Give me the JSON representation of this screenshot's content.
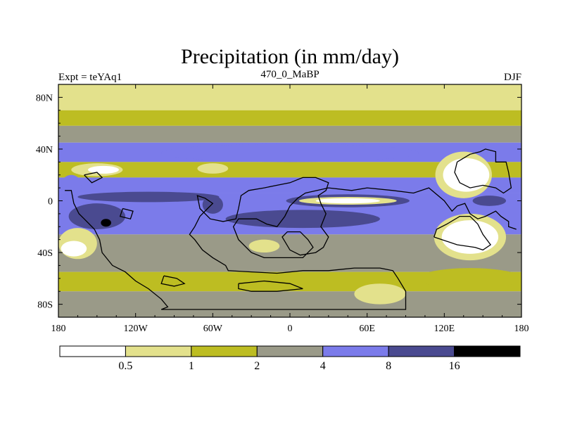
{
  "chart_data": {
    "type": "heatmap",
    "title": "Precipitation (in mm/day)",
    "subtitle_left": "Expt = teYAq1",
    "subtitle_center": "470_0_MaBP",
    "subtitle_right": "DJF",
    "x_tick_labels": [
      "180",
      "120W",
      "60W",
      "0",
      "60E",
      "120E",
      "180"
    ],
    "x_tick_values": [
      -180,
      -120,
      -60,
      0,
      60,
      120,
      180
    ],
    "y_tick_labels": [
      "80N",
      "40N",
      "0",
      "40S",
      "80S"
    ],
    "y_tick_values": [
      80,
      40,
      0,
      -40,
      -80
    ],
    "xlim": [
      -180,
      180
    ],
    "ylim": [
      -90,
      90
    ],
    "units": "mm/day",
    "levels": [
      0.5,
      1,
      2,
      4,
      8,
      16
    ],
    "level_labels": [
      "0.5",
      "1",
      "2",
      "4",
      "8",
      "16"
    ],
    "colors": [
      "#ffffff",
      "#e3e18c",
      "#bdbd22",
      "#9a9a88",
      "#7b7bea",
      "#4a4a90",
      "#000000"
    ],
    "bands": [
      {
        "lat_from": 90,
        "lat_to": 70,
        "class": 1
      },
      {
        "lat_from": 70,
        "lat_to": 58,
        "class": 2
      },
      {
        "lat_from": 58,
        "lat_to": 45,
        "class": 3
      },
      {
        "lat_from": 45,
        "lat_to": 30,
        "class": 4
      },
      {
        "lat_from": 30,
        "lat_to": 18,
        "class": 2
      },
      {
        "lat_from": 18,
        "lat_to": 6,
        "class": 4
      },
      {
        "lat_from": 6,
        "lat_to": -26,
        "class": 4
      },
      {
        "lat_from": -26,
        "lat_to": -55,
        "class": 3
      },
      {
        "lat_from": -55,
        "lat_to": -70,
        "class": 2
      },
      {
        "lat_from": -70,
        "lat_to": -90,
        "class": 3
      }
    ],
    "blobs": [
      {
        "lon": 45,
        "lat": 0,
        "rlon": 48,
        "rlat": 5,
        "class": 5
      },
      {
        "lon": 45,
        "lat": 0,
        "rlon": 38,
        "rlat": 3,
        "class": 1
      },
      {
        "lon": 45,
        "lat": 0,
        "rlon": 25,
        "rlat": 2,
        "class": 0
      },
      {
        "lon": -150,
        "lat": -12,
        "rlon": 22,
        "rlat": 10,
        "class": 5
      },
      {
        "lon": -143,
        "lat": -17,
        "rlon": 4,
        "rlat": 3,
        "class": 6
      },
      {
        "lon": 10,
        "lat": -14,
        "rlon": 60,
        "rlat": 7,
        "class": 5
      },
      {
        "lon": -110,
        "lat": 3,
        "rlon": 55,
        "rlat": 4,
        "class": 5
      },
      {
        "lon": -60,
        "lat": -3,
        "rlon": 8,
        "rlat": 7,
        "class": 5
      },
      {
        "lon": 155,
        "lat": 0,
        "rlon": 13,
        "rlat": 4,
        "class": 5
      },
      {
        "lon": 135,
        "lat": 20,
        "rlon": 22,
        "rlat": 18,
        "class": 1
      },
      {
        "lon": 137,
        "lat": 20,
        "rlon": 18,
        "rlat": 13,
        "class": 0
      },
      {
        "lon": 140,
        "lat": -28,
        "rlon": 28,
        "rlat": 18,
        "class": 1
      },
      {
        "lon": 140,
        "lat": -28,
        "rlon": 22,
        "rlat": 13,
        "class": 0
      },
      {
        "lon": -150,
        "lat": 24,
        "rlon": 20,
        "rlat": 5,
        "class": 1
      },
      {
        "lon": -145,
        "lat": 24,
        "rlon": 12,
        "rlat": 3,
        "class": 0
      },
      {
        "lon": -60,
        "lat": 25,
        "rlon": 12,
        "rlat": 4,
        "class": 1
      },
      {
        "lon": -20,
        "lat": -35,
        "rlon": 12,
        "rlat": 5,
        "class": 1
      },
      {
        "lon": -165,
        "lat": -33,
        "rlon": 15,
        "rlat": 12,
        "class": 1
      },
      {
        "lon": -168,
        "lat": -37,
        "rlon": 10,
        "rlat": 6,
        "class": 0
      },
      {
        "lon": 70,
        "lat": -72,
        "rlon": 20,
        "rlat": 8,
        "class": 1
      },
      {
        "lon": 140,
        "lat": -60,
        "rlon": 40,
        "rlat": 8,
        "class": 2
      },
      {
        "lon": 0,
        "lat": 37,
        "rlon": 100,
        "rlat": 7,
        "class": 4
      },
      {
        "lon": -170,
        "lat": 12,
        "rlon": 8,
        "rlat": 8,
        "class": 4
      }
    ],
    "land_outline": [
      [
        [
          -175,
          8
        ],
        [
          -170,
          8
        ],
        [
          -168,
          -2
        ],
        [
          -164,
          -10
        ],
        [
          -160,
          -14
        ],
        [
          -152,
          -22
        ],
        [
          -148,
          -30
        ],
        [
          -146,
          -40
        ],
        [
          -138,
          -50
        ],
        [
          -128,
          -55
        ],
        [
          -120,
          -62
        ],
        [
          -110,
          -68
        ],
        [
          -100,
          -76
        ],
        [
          -95,
          -82
        ],
        [
          -100,
          -84
        ],
        [
          -60,
          -84
        ],
        [
          0,
          -84
        ],
        [
          60,
          -84
        ],
        [
          90,
          -84
        ],
        [
          90,
          -70
        ],
        [
          84,
          -60
        ],
        [
          80,
          -54
        ],
        [
          70,
          -52
        ],
        [
          50,
          -52
        ],
        [
          30,
          -54
        ],
        [
          10,
          -54
        ],
        [
          -10,
          -56
        ],
        [
          -30,
          -55
        ],
        [
          -48,
          -54
        ],
        [
          -50,
          -50
        ],
        [
          -60,
          -44
        ],
        [
          -68,
          -38
        ],
        [
          -74,
          -30
        ],
        [
          -78,
          -26
        ],
        [
          -74,
          -20
        ],
        [
          -70,
          -12
        ],
        [
          -64,
          -6
        ],
        [
          -60,
          -2
        ],
        [
          -66,
          2
        ],
        [
          -72,
          4
        ],
        [
          -70,
          -6
        ],
        [
          -62,
          -14
        ],
        [
          -52,
          -16
        ],
        [
          -42,
          -14
        ],
        [
          -40,
          -6
        ],
        [
          -38,
          4
        ],
        [
          -32,
          8
        ],
        [
          -20,
          10
        ],
        [
          -10,
          12
        ],
        [
          0,
          14
        ],
        [
          10,
          18
        ],
        [
          20,
          18
        ],
        [
          30,
          14
        ],
        [
          28,
          8
        ],
        [
          22,
          4
        ],
        [
          24,
          -2
        ],
        [
          28,
          -10
        ],
        [
          24,
          -20
        ],
        [
          30,
          -28
        ],
        [
          26,
          -36
        ],
        [
          20,
          -40
        ],
        [
          8,
          -42
        ],
        [
          0,
          -38
        ],
        [
          -6,
          -28
        ],
        [
          -2,
          -24
        ],
        [
          8,
          -24
        ],
        [
          14,
          -30
        ],
        [
          18,
          -36
        ],
        [
          10,
          -44
        ],
        [
          -20,
          -44
        ],
        [
          -30,
          -40
        ],
        [
          -40,
          -30
        ],
        [
          -44,
          -20
        ],
        [
          -40,
          -14
        ],
        [
          -26,
          -14
        ],
        [
          -18,
          -18
        ],
        [
          -10,
          -20
        ],
        [
          -4,
          -12
        ],
        [
          0,
          -4
        ],
        [
          6,
          2
        ],
        [
          12,
          6
        ],
        [
          30,
          10
        ],
        [
          48,
          8
        ],
        [
          60,
          10
        ],
        [
          80,
          8
        ],
        [
          96,
          6
        ],
        [
          108,
          10
        ],
        [
          120,
          0
        ],
        [
          126,
          -8
        ],
        [
          130,
          -4
        ],
        [
          136,
          -2
        ],
        [
          140,
          -10
        ],
        [
          146,
          -14
        ],
        [
          152,
          -12
        ],
        [
          160,
          -8
        ],
        [
          164,
          -12
        ],
        [
          170,
          -16
        ],
        [
          170,
          -20
        ],
        [
          176,
          -22
        ]
      ],
      [
        [
          112,
          -28
        ],
        [
          130,
          -34
        ],
        [
          144,
          -36
        ],
        [
          150,
          -38
        ],
        [
          156,
          -34
        ],
        [
          150,
          -26
        ],
        [
          146,
          -18
        ],
        [
          140,
          -12
        ],
        [
          132,
          -12
        ],
        [
          122,
          -18
        ],
        [
          114,
          -22
        ],
        [
          112,
          -28
        ]
      ],
      [
        [
          130,
          30
        ],
        [
          140,
          36
        ],
        [
          148,
          38
        ],
        [
          152,
          40
        ],
        [
          160,
          38
        ],
        [
          160,
          30
        ],
        [
          168,
          30
        ],
        [
          170,
          22
        ],
        [
          172,
          10
        ],
        [
          166,
          6
        ],
        [
          160,
          10
        ],
        [
          150,
          12
        ],
        [
          140,
          10
        ],
        [
          132,
          14
        ],
        [
          128,
          22
        ],
        [
          130,
          30
        ]
      ],
      [
        [
          -160,
          20
        ],
        [
          -150,
          22
        ],
        [
          -146,
          18
        ],
        [
          -154,
          14
        ],
        [
          -160,
          20
        ]
      ],
      [
        [
          -130,
          -6
        ],
        [
          -122,
          -8
        ],
        [
          -124,
          -14
        ],
        [
          -132,
          -12
        ],
        [
          -130,
          -6
        ]
      ],
      [
        [
          -98,
          -58
        ],
        [
          -88,
          -60
        ],
        [
          -82,
          -64
        ],
        [
          -90,
          -66
        ],
        [
          -100,
          -64
        ],
        [
          -98,
          -58
        ]
      ],
      [
        [
          -40,
          -64
        ],
        [
          -20,
          -62
        ],
        [
          0,
          -64
        ],
        [
          10,
          -68
        ],
        [
          -10,
          -70
        ],
        [
          -30,
          -70
        ],
        [
          -40,
          -68
        ],
        [
          -40,
          -64
        ]
      ]
    ]
  }
}
